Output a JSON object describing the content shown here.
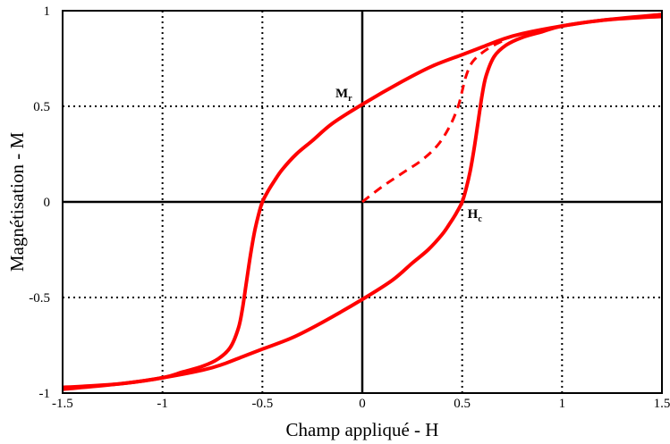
{
  "chart_data": {
    "type": "line",
    "title": "",
    "xlabel": "Champ appliqué - H",
    "ylabel": "Magnétisation - M",
    "xlim": [
      -1.5,
      1.5
    ],
    "ylim": [
      -1,
      1
    ],
    "x_ticks": [
      "-1.5",
      "-1",
      "-0.5",
      "0",
      "0.5",
      "1",
      "1.5"
    ],
    "y_ticks": [
      "-1",
      "-0.5",
      "0",
      "0.5",
      "1"
    ],
    "grid": "dotted",
    "line_color": "#ff0000",
    "series": [
      {
        "style": "solid",
        "x": [
          -1.5,
          -1.2,
          -1.0,
          -0.9,
          -0.8,
          -0.72,
          -0.66,
          -0.62,
          -0.6,
          -0.58,
          -0.56,
          -0.54,
          -0.52,
          -0.5,
          -0.47,
          -0.44,
          -0.4,
          -0.33,
          -0.25,
          -0.15,
          0.0,
          0.2,
          0.35,
          0.5,
          0.6,
          0.7,
          0.8,
          1.0,
          1.2,
          1.4,
          1.5
        ],
        "y": [
          -0.98,
          -0.95,
          -0.92,
          -0.89,
          -0.86,
          -0.82,
          -0.76,
          -0.66,
          -0.56,
          -0.42,
          -0.28,
          -0.16,
          -0.07,
          0.0,
          0.06,
          0.11,
          0.17,
          0.25,
          0.32,
          0.41,
          0.51,
          0.63,
          0.71,
          0.77,
          0.81,
          0.85,
          0.88,
          0.92,
          0.95,
          0.965,
          0.97
        ]
      },
      {
        "style": "solid",
        "x": [
          1.5,
          1.2,
          1.0,
          0.9,
          0.8,
          0.72,
          0.66,
          0.62,
          0.6,
          0.58,
          0.56,
          0.54,
          0.52,
          0.5,
          0.47,
          0.44,
          0.4,
          0.33,
          0.25,
          0.15,
          0.0,
          -0.2,
          -0.35,
          -0.5,
          -0.6,
          -0.7,
          -0.8,
          -1.0,
          -1.2,
          -1.4,
          -1.5
        ],
        "y": [
          0.98,
          0.95,
          0.92,
          0.89,
          0.86,
          0.82,
          0.76,
          0.66,
          0.56,
          0.42,
          0.28,
          0.16,
          0.07,
          0.0,
          -0.06,
          -0.11,
          -0.17,
          -0.25,
          -0.32,
          -0.41,
          -0.51,
          -0.63,
          -0.71,
          -0.77,
          -0.81,
          -0.85,
          -0.88,
          -0.92,
          -0.95,
          -0.965,
          -0.97
        ]
      },
      {
        "style": "dashed",
        "x": [
          0.0,
          0.1,
          0.2,
          0.3,
          0.38,
          0.44,
          0.48,
          0.5,
          0.52,
          0.55,
          0.6,
          0.66,
          0.72
        ],
        "y": [
          0.0,
          0.08,
          0.15,
          0.22,
          0.3,
          0.4,
          0.5,
          0.58,
          0.66,
          0.73,
          0.78,
          0.82,
          0.85
        ]
      }
    ],
    "annotations": [
      {
        "label": "M",
        "sub": "r",
        "x": 0.0,
        "y": 0.5
      },
      {
        "label": "H",
        "sub": "c",
        "x": 0.5,
        "y": 0.0
      }
    ]
  }
}
